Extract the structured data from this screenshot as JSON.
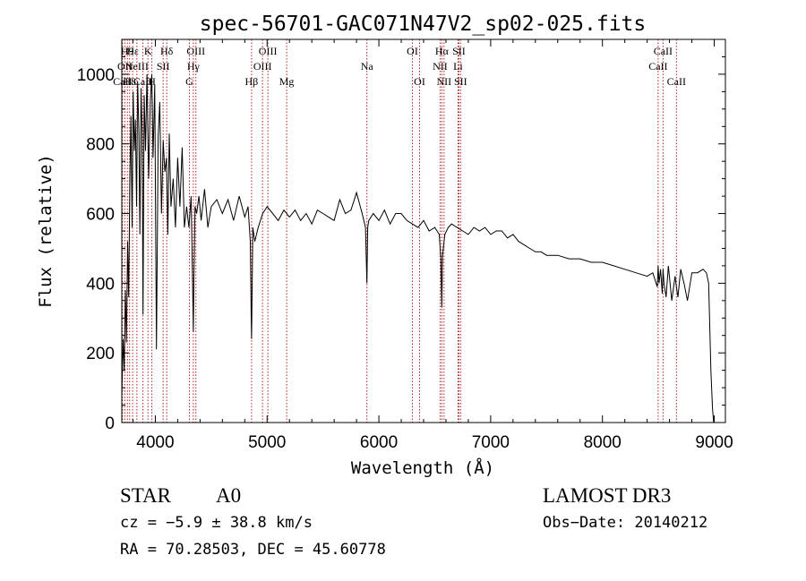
{
  "chart_data": {
    "type": "line",
    "title": "spec-56701-GAC071N47V2_sp02-025.fits",
    "xlabel": "Wavelength (Å)",
    "ylabel": "Flux (relative)",
    "xlim": [
      3700,
      9100
    ],
    "ylim": [
      0,
      1100
    ],
    "x_ticks": [
      4000,
      5000,
      6000,
      7000,
      8000,
      9000
    ],
    "y_ticks": [
      0,
      200,
      400,
      600,
      800,
      1000
    ],
    "grid": false,
    "series": [
      {
        "name": "spectrum",
        "x": [
          3700,
          3712,
          3722,
          3732,
          3742,
          3752,
          3762,
          3772,
          3782,
          3792,
          3802,
          3812,
          3822,
          3832,
          3842,
          3852,
          3862,
          3872,
          3882,
          3890,
          3900,
          3912,
          3925,
          3940,
          3955,
          3968,
          3980,
          3995,
          4010,
          4025,
          4040,
          4055,
          4070,
          4085,
          4100,
          4112,
          4125,
          4140,
          4160,
          4180,
          4200,
          4220,
          4240,
          4260,
          4280,
          4300,
          4320,
          4335,
          4340,
          4345,
          4355,
          4370,
          4390,
          4410,
          4440,
          4470,
          4500,
          4550,
          4600,
          4650,
          4700,
          4750,
          4800,
          4830,
          4850,
          4858,
          4861,
          4864,
          4872,
          4890,
          4920,
          4960,
          5000,
          5050,
          5100,
          5150,
          5200,
          5250,
          5300,
          5350,
          5400,
          5450,
          5500,
          5550,
          5600,
          5650,
          5700,
          5750,
          5800,
          5850,
          5880,
          5893,
          5900,
          5910,
          5950,
          6000,
          6050,
          6100,
          6150,
          6200,
          6250,
          6300,
          6350,
          6400,
          6450,
          6500,
          6540,
          6555,
          6563,
          6570,
          6590,
          6620,
          6650,
          6700,
          6750,
          6800,
          6850,
          6900,
          6950,
          7000,
          7050,
          7100,
          7150,
          7200,
          7250,
          7300,
          7350,
          7400,
          7450,
          7500,
          7600,
          7700,
          7800,
          7900,
          8000,
          8100,
          8200,
          8300,
          8400,
          8450,
          8490,
          8498,
          8506,
          8520,
          8535,
          8542,
          8550,
          8570,
          8590,
          8620,
          8650,
          8662,
          8675,
          8700,
          8730,
          8760,
          8800,
          8850,
          8900,
          8930,
          8950,
          8970,
          8985,
          8995
        ],
        "values": [
          80,
          240,
          150,
          380,
          230,
          520,
          360,
          700,
          880,
          560,
          950,
          780,
          870,
          620,
          980,
          840,
          540,
          960,
          830,
          310,
          940,
          780,
          1000,
          700,
          920,
          1000,
          760,
          970,
          210,
          820,
          920,
          600,
          810,
          720,
          760,
          540,
          830,
          620,
          700,
          560,
          760,
          620,
          790,
          560,
          620,
          560,
          650,
          360,
          260,
          410,
          620,
          600,
          650,
          580,
          670,
          560,
          620,
          640,
          600,
          640,
          580,
          650,
          590,
          620,
          520,
          300,
          240,
          330,
          560,
          520,
          560,
          600,
          620,
          600,
          580,
          610,
          590,
          610,
          580,
          600,
          570,
          610,
          600,
          590,
          580,
          640,
          600,
          610,
          660,
          600,
          560,
          400,
          560,
          580,
          600,
          580,
          610,
          570,
          600,
          600,
          580,
          570,
          560,
          580,
          550,
          560,
          540,
          470,
          330,
          480,
          540,
          560,
          570,
          560,
          550,
          540,
          560,
          550,
          560,
          540,
          550,
          550,
          530,
          540,
          520,
          510,
          500,
          490,
          490,
          480,
          480,
          470,
          470,
          460,
          460,
          450,
          440,
          430,
          420,
          430,
          390,
          450,
          400,
          440,
          370,
          440,
          400,
          360,
          450,
          350,
          420,
          390,
          360,
          440,
          400,
          350,
          430,
          430,
          440,
          430,
          400,
          150,
          40,
          0
        ]
      }
    ],
    "line_markers": [
      {
        "label": "CaII",
        "x": 3706,
        "row": 2
      },
      {
        "label": "OII",
        "x": 3727,
        "row": 1
      },
      {
        "label": "H9",
        "x": 3750,
        "row": 0
      },
      {
        "label": "H8",
        "x": 3770,
        "row": 2
      },
      {
        "label": "Hε",
        "x": 3797,
        "row": 0
      },
      {
        "label": "NeIII",
        "x": 3835,
        "row": 1
      },
      {
        "label": "CaII",
        "x": 3889,
        "row": 2
      },
      {
        "label": "K",
        "x": 3934,
        "row": 0
      },
      {
        "label": "H",
        "x": 3969,
        "row": 2
      },
      {
        "label": "SII",
        "x": 4070,
        "row": 1
      },
      {
        "label": "Hδ",
        "x": 4102,
        "row": 0
      },
      {
        "label": "G",
        "x": 4305,
        "row": 2
      },
      {
        "label": "Hγ",
        "x": 4340,
        "row": 1
      },
      {
        "label": "OIII",
        "x": 4363,
        "row": 0
      },
      {
        "label": "Hβ",
        "x": 4861,
        "row": 2
      },
      {
        "label": "OIII",
        "x": 4959,
        "row": 1
      },
      {
        "label": "OIII",
        "x": 5007,
        "row": 0
      },
      {
        "label": "Mg",
        "x": 5175,
        "row": 2
      },
      {
        "label": "Na",
        "x": 5893,
        "row": 1
      },
      {
        "label": "OI",
        "x": 6300,
        "row": 0
      },
      {
        "label": "OI",
        "x": 6364,
        "row": 2
      },
      {
        "label": "NII",
        "x": 6548,
        "row": 1
      },
      {
        "label": "Hα",
        "x": 6563,
        "row": 0
      },
      {
        "label": "NII",
        "x": 6583,
        "row": 2
      },
      {
        "label": "SII",
        "x": 6716,
        "row": 0
      },
      {
        "label": "Li",
        "x": 6708,
        "row": 1
      },
      {
        "label": "SII",
        "x": 6731,
        "row": 2
      },
      {
        "label": "CaII",
        "x": 8498,
        "row": 1
      },
      {
        "label": "CaII",
        "x": 8542,
        "row": 0
      },
      {
        "label": "CaII",
        "x": 8662,
        "row": 2
      }
    ]
  },
  "info": {
    "class_label": "STAR",
    "subclass": "A0",
    "survey": "LAMOST DR3",
    "velocity": "cz = −5.9 ± 38.8 km/s",
    "obs_date": "Obs−Date: 20140212",
    "coords": "RA =  70.28503, DEC =  45.60778"
  },
  "colors": {
    "spectrum": "#000000",
    "marker": "#b22222"
  }
}
